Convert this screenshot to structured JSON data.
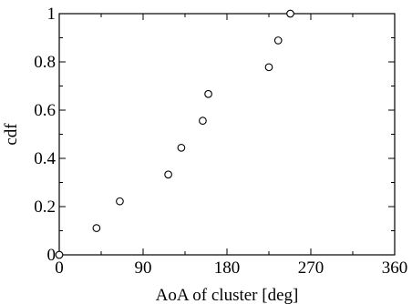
{
  "chart_data": {
    "type": "scatter",
    "title": "",
    "xlabel": "AoA of cluster [deg]",
    "ylabel": "cdf",
    "xlim": [
      0,
      360
    ],
    "ylim": [
      0,
      1
    ],
    "xticks": [
      "0",
      "90",
      "180",
      "270",
      "360"
    ],
    "yticks": [
      "0",
      "0.2",
      "0.4",
      "0.6",
      "0.8",
      "1"
    ],
    "grid": false,
    "legend": "none",
    "marker": "open-circle",
    "colors": {
      "marker": "#000000",
      "axes": "#000000",
      "background": "#ffffff"
    },
    "series": [
      {
        "x": [
          0,
          40,
          65,
          117,
          131,
          154,
          160,
          225,
          235,
          248
        ],
        "y": [
          0,
          0.111,
          0.222,
          0.333,
          0.444,
          0.556,
          0.667,
          0.778,
          0.889,
          1
        ]
      }
    ]
  }
}
